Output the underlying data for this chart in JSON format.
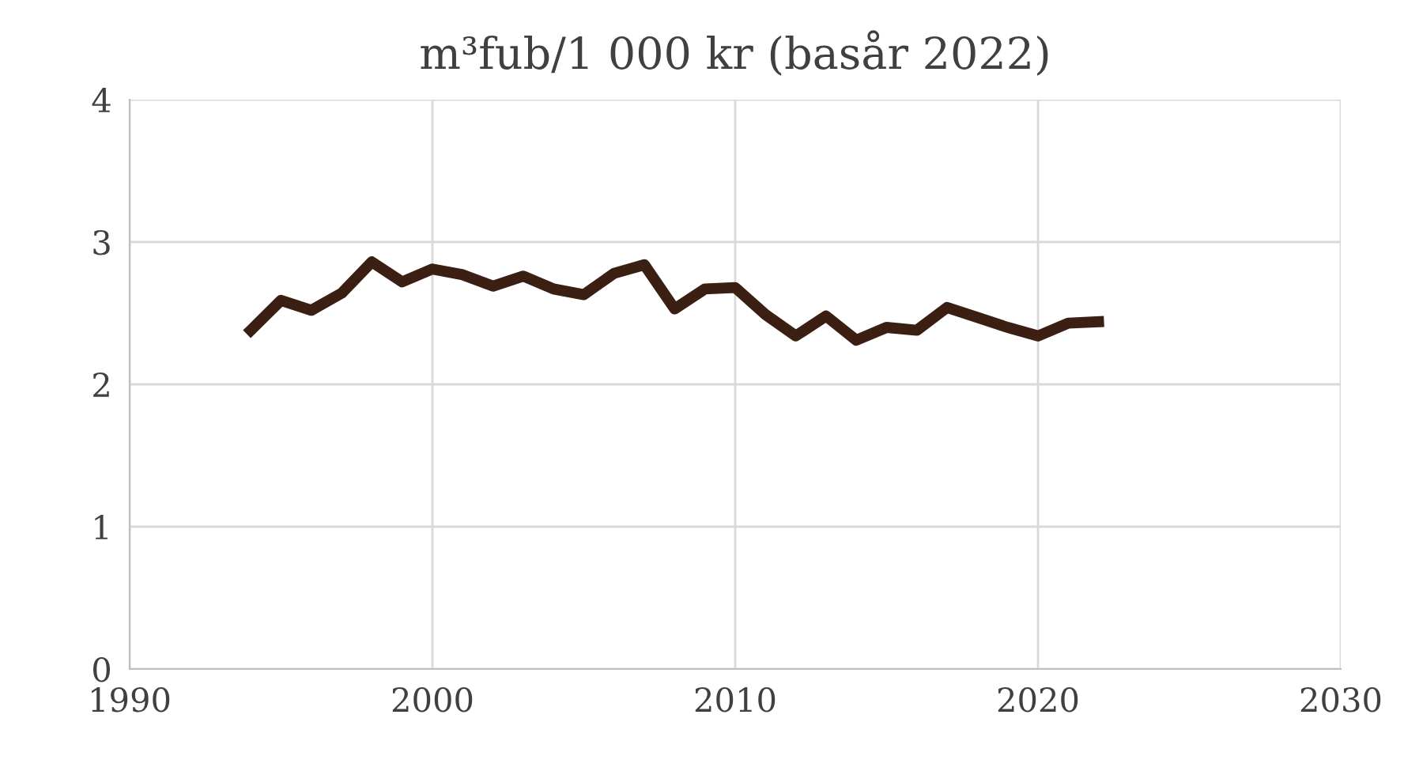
{
  "chart_data": {
    "type": "line",
    "title": "m³fub/1 000 kr (basår 2022)",
    "x": [
      1994,
      1995,
      1996,
      1997,
      1998,
      1999,
      2000,
      2001,
      2002,
      2003,
      2004,
      2005,
      2006,
      2007,
      2008,
      2009,
      2010,
      2011,
      2012,
      2013,
      2014,
      2015,
      2016,
      2017,
      2018,
      2019,
      2020,
      2021,
      2022
    ],
    "series": [
      {
        "color": "#3b1f12",
        "values": [
          2.38,
          2.59,
          2.52,
          2.64,
          2.86,
          2.72,
          2.81,
          2.77,
          2.69,
          2.76,
          2.67,
          2.63,
          2.78,
          2.84,
          2.53,
          2.67,
          2.68,
          2.49,
          2.34,
          2.48,
          2.31,
          2.4,
          2.38,
          2.54,
          2.47,
          2.4,
          2.34,
          2.43,
          2.44
        ]
      }
    ],
    "xlim": [
      1990,
      2030
    ],
    "xticks": [
      1990,
      2000,
      2010,
      2020,
      2030
    ],
    "ylim": [
      0,
      4
    ],
    "yticks": [
      0,
      1,
      2,
      3,
      4
    ],
    "grid": true,
    "legend": false,
    "marker": "none",
    "line_style": "solid"
  }
}
